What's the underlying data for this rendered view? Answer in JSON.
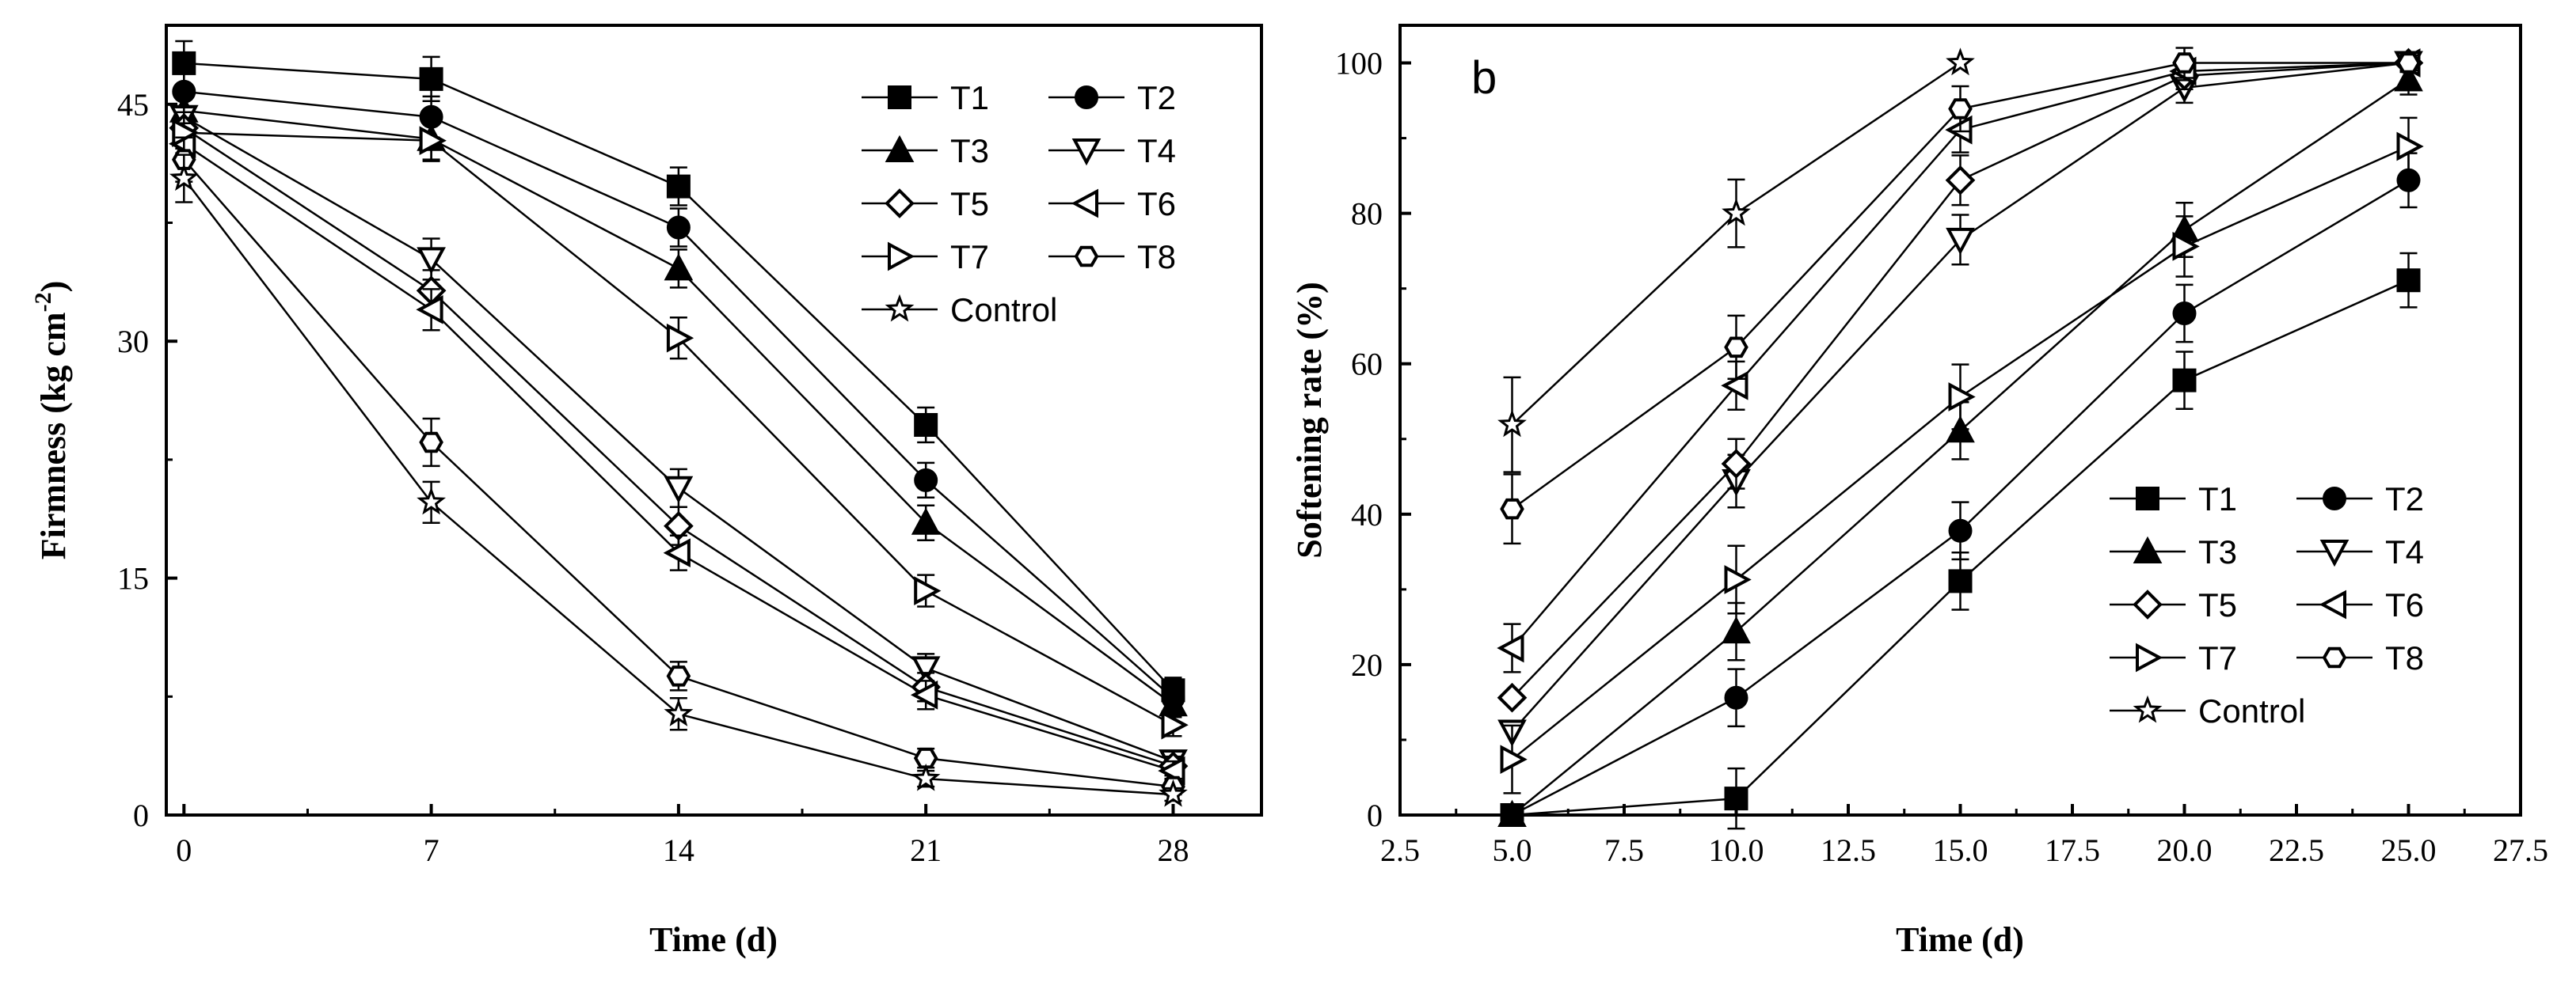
{
  "chart_data": [
    {
      "type": "line",
      "panel_label": "",
      "xlabel": "Time (d)",
      "ylabel": "Firmness (kg cm",
      "ylabel_sup": "-2",
      "ylabel_close": ")",
      "xlim": [
        -0.5,
        30.5
      ],
      "ylim": [
        0,
        50
      ],
      "xticks": [
        0,
        7,
        14,
        21,
        28
      ],
      "xtick_labels": [
        "0",
        "7",
        "14",
        "21",
        "28"
      ],
      "yticks": [
        0,
        15,
        30,
        45
      ],
      "ytick_labels": [
        "0",
        "15",
        "30",
        "45"
      ],
      "x": [
        0,
        7,
        14,
        21,
        28
      ],
      "series": [
        {
          "name": "T1",
          "marker": "square",
          "values": [
            47.6,
            46.6,
            39.8,
            24.7,
            7.9
          ],
          "errors": [
            1.4,
            1.4,
            1.2,
            1.1,
            0.8
          ]
        },
        {
          "name": "T2",
          "marker": "circle",
          "values": [
            45.8,
            44.2,
            37.2,
            21.2,
            7.4
          ],
          "errors": [
            1.3,
            1.3,
            1.2,
            1.1,
            0.8
          ]
        },
        {
          "name": "T3",
          "marker": "triangle-up",
          "values": [
            44.6,
            42.8,
            34.6,
            18.5,
            7.0
          ],
          "errors": [
            1.3,
            1.3,
            1.2,
            1.1,
            0.8
          ]
        },
        {
          "name": "T4",
          "marker": "triangle-down",
          "values": [
            44.2,
            35.2,
            20.7,
            9.3,
            3.4
          ],
          "errors": [
            1.3,
            1.3,
            1.2,
            0.9,
            0.6
          ]
        },
        {
          "name": "T5",
          "marker": "diamond",
          "values": [
            43.5,
            33.2,
            18.3,
            8.1,
            3.1
          ],
          "errors": [
            1.3,
            1.3,
            1.2,
            0.9,
            0.6
          ]
        },
        {
          "name": "T6",
          "marker": "triangle-left",
          "values": [
            42.5,
            32.0,
            16.6,
            7.6,
            2.8
          ],
          "errors": [
            1.3,
            1.3,
            1.1,
            0.9,
            0.6
          ]
        },
        {
          "name": "T7",
          "marker": "triangle-right",
          "values": [
            43.2,
            42.7,
            30.2,
            14.2,
            5.7
          ],
          "errors": [
            1.3,
            1.3,
            1.3,
            1.0,
            0.7
          ]
        },
        {
          "name": "T8",
          "marker": "hexagon",
          "values": [
            41.5,
            23.6,
            8.8,
            3.6,
            1.8
          ],
          "errors": [
            1.4,
            1.5,
            0.9,
            0.6,
            0.5
          ]
        },
        {
          "name": "Control",
          "marker": "star",
          "values": [
            40.3,
            19.8,
            6.4,
            2.3,
            1.3
          ],
          "errors": [
            1.5,
            1.3,
            1.0,
            0.5,
            0.4
          ]
        }
      ],
      "legend": {
        "position": "top-right",
        "columns": 2
      }
    },
    {
      "type": "line",
      "panel_label": "b",
      "xlabel": "Time (d)",
      "ylabel": "Softening rate (%)",
      "xlim": [
        2.5,
        27.5
      ],
      "ylim": [
        0,
        105
      ],
      "xticks": [
        2.5,
        5.0,
        7.5,
        10.0,
        12.5,
        15.0,
        17.5,
        20.0,
        22.5,
        25.0,
        27.5
      ],
      "xtick_labels": [
        "2.5",
        "5.0",
        "7.5",
        "10.0",
        "12.5",
        "15.0",
        "17.5",
        "20.0",
        "22.5",
        "25.0",
        "27.5"
      ],
      "yticks": [
        0,
        20,
        40,
        60,
        80,
        100
      ],
      "ytick_labels": [
        "0",
        "20",
        "40",
        "60",
        "80",
        "100"
      ],
      "x": [
        5,
        10,
        15,
        20,
        25
      ],
      "series": [
        {
          "name": "T1",
          "marker": "square",
          "values": [
            0,
            2.2,
            31.1,
            57.8,
            71.1
          ],
          "errors": [
            0,
            4.0,
            3.8,
            3.8,
            3.6
          ]
        },
        {
          "name": "T2",
          "marker": "circle",
          "values": [
            0,
            15.6,
            37.8,
            66.7,
            84.4
          ],
          "errors": [
            0,
            3.8,
            3.8,
            3.8,
            3.6
          ]
        },
        {
          "name": "T3",
          "marker": "triangle-up",
          "values": [
            0,
            24.4,
            51.1,
            77.8,
            97.8
          ],
          "errors": [
            0,
            3.8,
            3.8,
            3.6,
            2.0
          ]
        },
        {
          "name": "T4",
          "marker": "triangle-down",
          "values": [
            11.1,
            44.4,
            76.5,
            96.7,
            100
          ],
          "errors": [
            0,
            3.5,
            3.3,
            2.0,
            1.2
          ]
        },
        {
          "name": "T5",
          "marker": "diamond",
          "values": [
            15.6,
            46.7,
            84.4,
            98.3,
            100
          ],
          "errors": [
            0,
            3.3,
            3.3,
            1.8,
            1.2
          ]
        },
        {
          "name": "T6",
          "marker": "triangle-left",
          "values": [
            22.2,
            57.1,
            91.1,
            98.9,
            100
          ],
          "errors": [
            3.2,
            3.2,
            3.0,
            1.2,
            1.0
          ]
        },
        {
          "name": "T7",
          "marker": "triangle-right",
          "values": [
            7.4,
            31.3,
            55.6,
            75.6,
            88.9
          ],
          "errors": [
            4.5,
            4.5,
            4.3,
            4.0,
            3.8
          ]
        },
        {
          "name": "T8",
          "marker": "hexagon",
          "values": [
            40.7,
            62.2,
            93.9,
            100,
            100
          ],
          "errors": [
            4.6,
            4.2,
            3.0,
            2.0,
            1.0
          ]
        },
        {
          "name": "Control",
          "marker": "star",
          "values": [
            51.9,
            80.0,
            100,
            null,
            null
          ],
          "errors": [
            6.3,
            4.5,
            0
          ]
        }
      ],
      "legend": {
        "position": "bottom-right",
        "columns": 2
      }
    }
  ]
}
